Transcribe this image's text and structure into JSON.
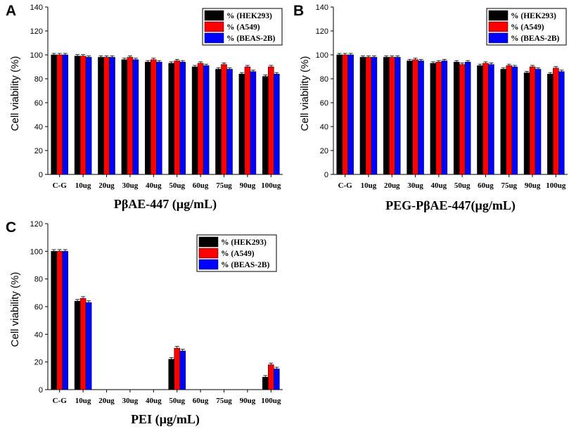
{
  "chart_data": [
    {
      "panel": "A",
      "type": "bar",
      "title": "",
      "xlabel": "PβAE-447 (µg/mL)",
      "ylabel": "Cell viability (%)",
      "ylim": [
        0,
        140
      ],
      "yticks": [
        0,
        20,
        40,
        60,
        80,
        100,
        120,
        140
      ],
      "categories": [
        "C-G",
        "10ug",
        "20ug",
        "30ug",
        "40ug",
        "50ug",
        "60ug",
        "75ug",
        "90ug",
        "100ug"
      ],
      "series": [
        {
          "name": "% (HEK293)",
          "color": "#000000",
          "values": [
            100,
            99,
            98,
            96,
            94,
            93,
            90,
            88,
            84,
            82
          ]
        },
        {
          "name": "% (A549)",
          "color": "#ff0000",
          "values": [
            100,
            99,
            98,
            98,
            96,
            95,
            93,
            92,
            90,
            90
          ]
        },
        {
          "name": "% (BEAS-2B)",
          "color": "#0000ff",
          "values": [
            100,
            98,
            98,
            96,
            94,
            94,
            91,
            88,
            86,
            84
          ]
        }
      ],
      "legend": "top-right"
    },
    {
      "panel": "B",
      "type": "bar",
      "title": "",
      "xlabel": "PEG-PβAE-447(µg/mL)",
      "ylabel": "Cell viability (%)",
      "ylim": [
        0,
        140
      ],
      "yticks": [
        0,
        20,
        40,
        60,
        80,
        100,
        120,
        140
      ],
      "categories": [
        "C-G",
        "10ug",
        "20ug",
        "30ug",
        "40ug",
        "50ug",
        "60ug",
        "75ug",
        "90ug",
        "100ug"
      ],
      "series": [
        {
          "name": "% (HEK293)",
          "color": "#000000",
          "values": [
            100,
            98,
            98,
            95,
            93,
            94,
            91,
            88,
            85,
            84
          ]
        },
        {
          "name": "% (A549)",
          "color": "#ff0000",
          "values": [
            100,
            98,
            98,
            96,
            94,
            92,
            93,
            91,
            90,
            89
          ]
        },
        {
          "name": "% (BEAS-2B)",
          "color": "#0000ff",
          "values": [
            100,
            98,
            98,
            95,
            95,
            94,
            92,
            90,
            88,
            86
          ]
        }
      ],
      "legend": "top-right"
    },
    {
      "panel": "C",
      "type": "bar",
      "title": "",
      "xlabel": "PEI (µg/mL)",
      "ylabel": "Cell viability (%)",
      "ylim": [
        0,
        120
      ],
      "yticks": [
        0,
        20,
        40,
        60,
        80,
        100,
        120
      ],
      "categories": [
        "C-G",
        "10ug",
        "20ug",
        "30ug",
        "40ug",
        "50ug",
        "60ug",
        "75ug",
        "90ug",
        "100ug"
      ],
      "series": [
        {
          "name": "% (HEK293)",
          "color": "#000000",
          "values": [
            100,
            64,
            0,
            0,
            0,
            22,
            0,
            0,
            0,
            9
          ]
        },
        {
          "name": "% (A549)",
          "color": "#ff0000",
          "values": [
            100,
            66,
            0,
            0,
            0,
            30,
            0,
            0,
            0,
            18
          ]
        },
        {
          "name": "% (BEAS-2B)",
          "color": "#0000ff",
          "values": [
            100,
            63,
            0,
            0,
            0,
            28,
            0,
            0,
            0,
            15
          ]
        }
      ],
      "legend": "top-right"
    }
  ]
}
